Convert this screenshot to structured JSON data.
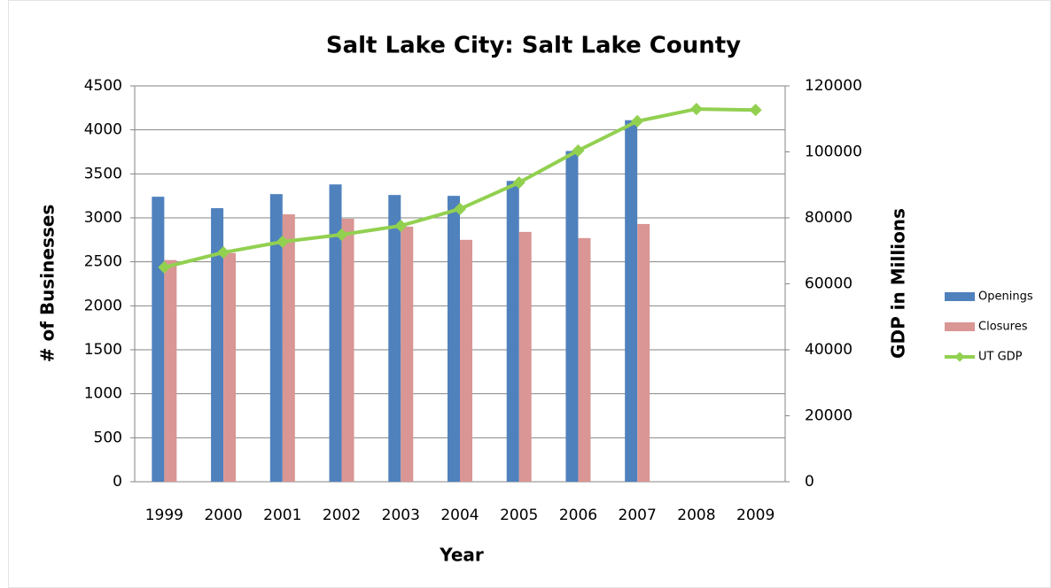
{
  "chart_data": {
    "type": "bar-line",
    "title": "Salt Lake City: Salt Lake County",
    "x_label": "Year",
    "y_label": "# of Businesses",
    "y2_label": "GDP in Millions",
    "categories": [
      "1999",
      "2000",
      "2001",
      "2002",
      "2003",
      "2004",
      "2005",
      "2006",
      "2007",
      "2008",
      "2009"
    ],
    "series": [
      {
        "name": "Openings",
        "type": "bar",
        "color": "#4f81bd",
        "values": [
          3240,
          3110,
          3270,
          3380,
          3260,
          3250,
          3420,
          3760,
          4110,
          null,
          null
        ]
      },
      {
        "name": "Closures",
        "type": "bar",
        "color": "#d99694",
        "values": [
          2520,
          2600,
          3040,
          2990,
          2900,
          2750,
          2840,
          2770,
          2930,
          null,
          null
        ]
      },
      {
        "name": "UT GDP",
        "type": "line",
        "axis": "y2",
        "color": "#92d050",
        "values": [
          65000,
          69500,
          72750,
          74900,
          77600,
          82700,
          90700,
          100400,
          109300,
          113000,
          112700
        ]
      }
    ],
    "ylim": [
      0,
      4500
    ],
    "yticks": [
      0,
      500,
      1000,
      1500,
      2000,
      2500,
      3000,
      3500,
      4000,
      4500
    ],
    "y2lim": [
      0,
      120000
    ],
    "y2ticks": [
      0,
      20000,
      40000,
      60000,
      80000,
      100000,
      120000
    ],
    "grid": true,
    "legend": "right"
  }
}
